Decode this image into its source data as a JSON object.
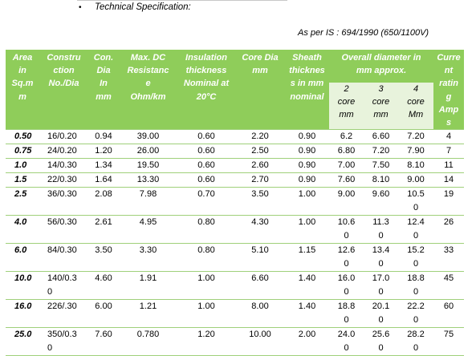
{
  "header": {
    "bullet": "•",
    "title": "Technical Specification:",
    "standard": "As per IS : 694/1990 (650/1100V)"
  },
  "columns": {
    "area": [
      "Area",
      "in",
      "Sq.m",
      "m"
    ],
    "construction": [
      "Constru",
      "ction",
      "No./Dia"
    ],
    "cond_dia": [
      "Con.",
      "Dia",
      "In",
      "mm"
    ],
    "max_dc": [
      "Max. DC",
      "Resistanc",
      "e",
      "Ohm/km"
    ],
    "insulation": [
      "Insulation",
      "thickness",
      "Nominal at",
      "20°C"
    ],
    "core_dia": [
      "Core Dia",
      "mm"
    ],
    "sheath": [
      "Sheath",
      "thicknes",
      "s in mm",
      "nominal"
    ],
    "overall": [
      "Overall diameter in",
      "mm approx."
    ],
    "core2": [
      "2",
      "core",
      "mm"
    ],
    "core3": [
      "3",
      "core",
      "mm"
    ],
    "core4": [
      "4",
      "core",
      "Mm"
    ],
    "current": [
      "Curre",
      "nt",
      "ratin",
      "g",
      "Amp",
      "s"
    ]
  },
  "rows": [
    {
      "area": "0.50",
      "construction": [
        "16/0.20"
      ],
      "cond_dia": "0.94",
      "max_dc": "39.00",
      "insulation": "0.60",
      "core_dia": "2.20",
      "sheath": "0.90",
      "core2": [
        "6.2"
      ],
      "core3": [
        "6.60"
      ],
      "core4": [
        "7.20"
      ],
      "current": "4"
    },
    {
      "area": "0.75",
      "construction": [
        "24/0.20"
      ],
      "cond_dia": "1.20",
      "max_dc": "26.00",
      "insulation": "0.60",
      "core_dia": "2.50",
      "sheath": "0.90",
      "core2": [
        "6.80"
      ],
      "core3": [
        "7.20"
      ],
      "core4": [
        "7.90"
      ],
      "current": "7"
    },
    {
      "area": "1.0",
      "construction": [
        "14/0.30"
      ],
      "cond_dia": "1.34",
      "max_dc": "19.50",
      "insulation": "0.60",
      "core_dia": "2.60",
      "sheath": "0.90",
      "core2": [
        "7.00"
      ],
      "core3": [
        "7.50"
      ],
      "core4": [
        "8.10"
      ],
      "current": "11"
    },
    {
      "area": "1.5",
      "construction": [
        "22/0.30"
      ],
      "cond_dia": "1.64",
      "max_dc": "13.30",
      "insulation": "0.60",
      "core_dia": "2.70",
      "sheath": "0.90",
      "core2": [
        "7.60"
      ],
      "core3": [
        "8.10"
      ],
      "core4": [
        "9.00"
      ],
      "current": "14"
    },
    {
      "area": "2.5",
      "construction": [
        "36/0.30"
      ],
      "cond_dia": "2.08",
      "max_dc": "7.98",
      "insulation": "0.70",
      "core_dia": "3.50",
      "sheath": "1.00",
      "core2": [
        "9.00"
      ],
      "core3": [
        "9.60"
      ],
      "core4": [
        "10.5",
        "0"
      ],
      "current": "19"
    },
    {
      "area": "4.0",
      "construction": [
        "56/0.30"
      ],
      "cond_dia": "2.61",
      "max_dc": "4.95",
      "insulation": "0.80",
      "core_dia": "4.30",
      "sheath": "1.00",
      "core2": [
        "10.6",
        "0"
      ],
      "core3": [
        "11.3",
        "0"
      ],
      "core4": [
        "12.4",
        "0"
      ],
      "current": "26"
    },
    {
      "area": "6.0",
      "construction": [
        "84/0.30"
      ],
      "cond_dia": "3.50",
      "max_dc": "3.30",
      "insulation": "0.80",
      "core_dia": "5.10",
      "sheath": "1.15",
      "core2": [
        "12.6",
        "0"
      ],
      "core3": [
        "13.4",
        "0"
      ],
      "core4": [
        "15.2",
        "0"
      ],
      "current": "33"
    },
    {
      "area": "10.0",
      "construction": [
        "140/0.3",
        "0"
      ],
      "cond_dia": "4.60",
      "max_dc": "1.91",
      "insulation": "1.00",
      "core_dia": "6.60",
      "sheath": "1.40",
      "core2": [
        "16.0",
        "0"
      ],
      "core3": [
        "17.0",
        "0"
      ],
      "core4": [
        "18.8",
        "0"
      ],
      "current": "45"
    },
    {
      "area": "16.0",
      "construction": [
        "226/.30"
      ],
      "cond_dia": "6.00",
      "max_dc": "1.21",
      "insulation": "1.00",
      "core_dia": "8.00",
      "sheath": "1.40",
      "core2": [
        "18.8",
        "0"
      ],
      "core3": [
        "20.1",
        "0"
      ],
      "core4": [
        "22.2",
        "0"
      ],
      "current": "60"
    },
    {
      "area": "25.0",
      "construction": [
        "350/0.3",
        "0"
      ],
      "cond_dia": "7.60",
      "max_dc": "0.780",
      "insulation": "1.20",
      "core_dia": "10.00",
      "sheath": "2.00",
      "core2": [
        "24.0",
        "0"
      ],
      "core3": [
        "25.6",
        "0"
      ],
      "core4": [
        "28.2",
        "0"
      ],
      "current": "75"
    }
  ]
}
